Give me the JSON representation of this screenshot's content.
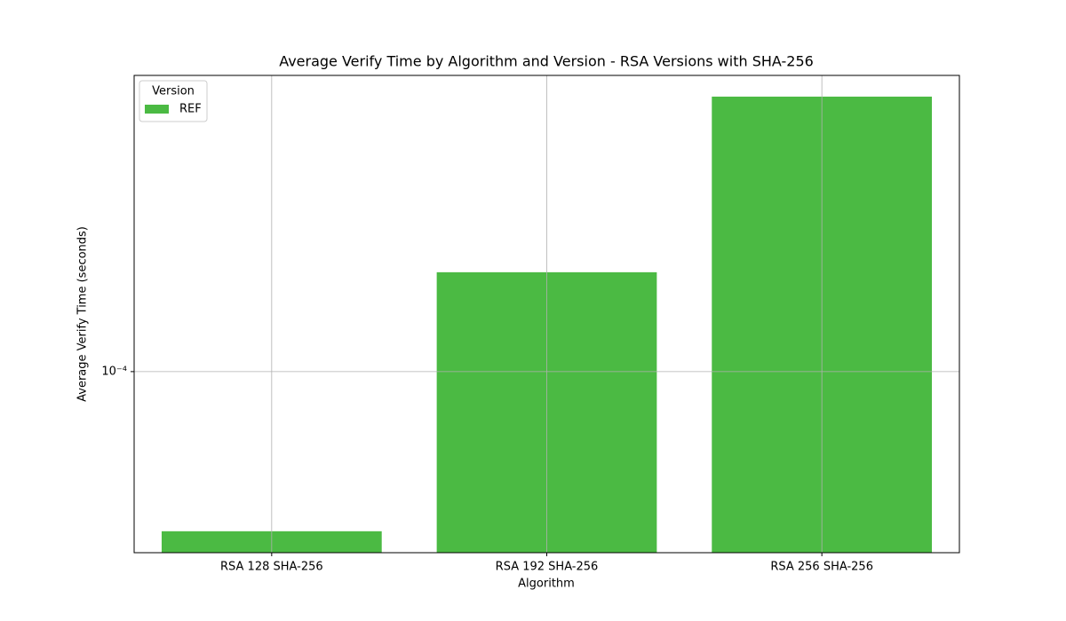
{
  "chart_data": {
    "type": "bar",
    "title": "Average Verify Time by Algorithm and Version - RSA Versions with SHA-256",
    "x_label": "Algorithm",
    "y_label": "Average Verify Time (seconds)",
    "categories": [
      "RSA 128 SHA-256",
      "RSA 192 SHA-256",
      "RSA 256 SHA-256"
    ],
    "series": [
      {
        "name": "REF",
        "color": "#4bba43",
        "values": [
          3.06e-05,
          0.000209,
          0.000769
        ]
      }
    ],
    "legend_title": "Version",
    "legend": "upper left",
    "ylog": true,
    "ylim": [
      2.61e-05,
      0.0009
    ],
    "yticks": [
      {
        "value": 0.0001,
        "label": "10⁻⁴"
      }
    ],
    "grid": true
  }
}
